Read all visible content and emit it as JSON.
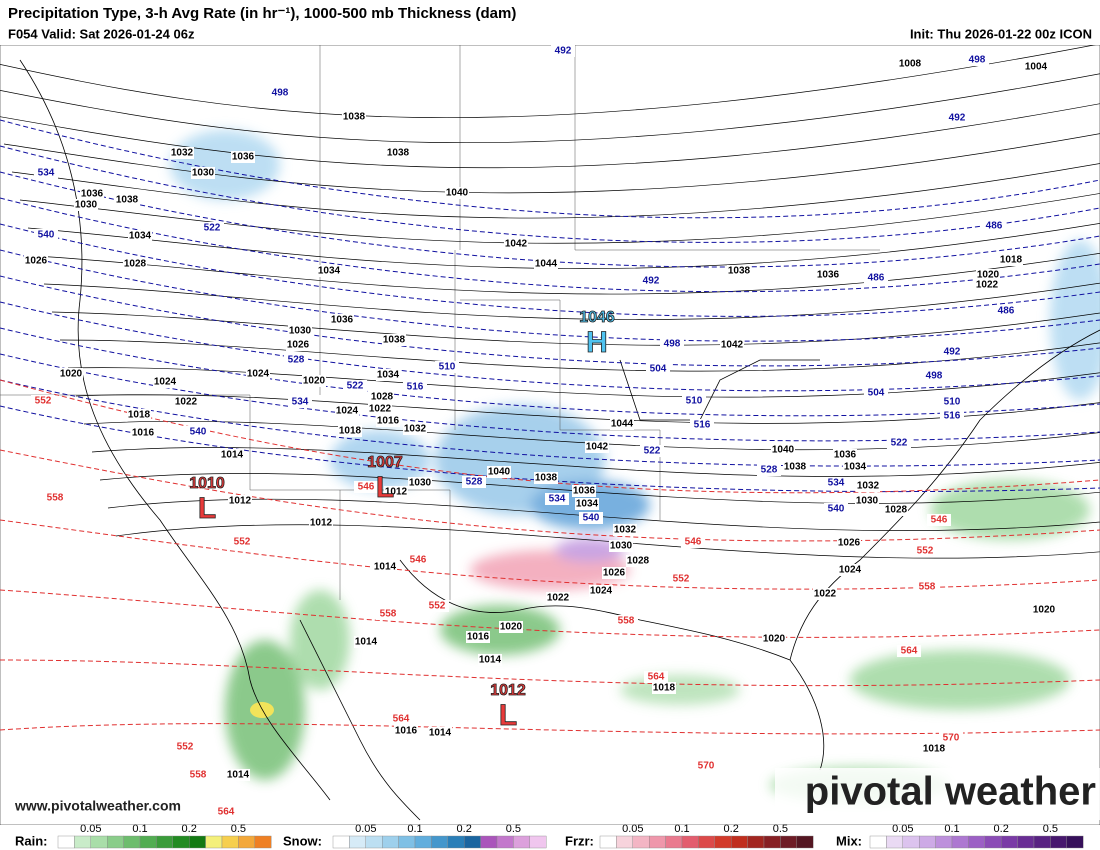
{
  "header": {
    "title": "Precipitation Type, 3-h Avg Rate (in hr⁻¹), 1000-500 mb Thickness (dam)",
    "valid": "F054 Valid: Sat 2026-01-24 06z",
    "init": "Init: Thu 2026-01-22 00z ICON"
  },
  "centers": [
    {
      "value": "1046",
      "letter": "H"
    },
    {
      "value": "1007",
      "letter": "L"
    },
    {
      "value": "1010",
      "letter": "L"
    },
    {
      "value": "1012",
      "letter": "L"
    }
  ],
  "isobar_labels": [
    "1008",
    "1004",
    "1038",
    "1032",
    "1036",
    "1038",
    "1030",
    "1040",
    "1036",
    "1038",
    "1030",
    "1034",
    "1042",
    "1044",
    "1026",
    "1028",
    "1034",
    "1038",
    "1036",
    "1018",
    "1020",
    "1022",
    "1036",
    "1030",
    "1038",
    "1026",
    "1042",
    "1024",
    "1020",
    "1034",
    "1020",
    "1024",
    "1028",
    "1022",
    "1024",
    "1022",
    "1018",
    "1016",
    "1032",
    "1016",
    "1018",
    "1044",
    "1014",
    "1042",
    "1040",
    "1036",
    "1034",
    "1038",
    "1040",
    "1038",
    "1030",
    "1012",
    "1032",
    "1036",
    "1012",
    "1034",
    "1030",
    "1028",
    "1032",
    "1012",
    "1030",
    "1026",
    "1028",
    "1014",
    "1026",
    "1024",
    "1022",
    "1024",
    "1022",
    "1020",
    "1020",
    "1016",
    "1014",
    "1020",
    "1014",
    "1018",
    "1016",
    "1014",
    "1018",
    "1014"
  ],
  "cold_thickness_labels": [
    "492",
    "498",
    "498",
    "492",
    "534",
    "522",
    "540",
    "486",
    "492",
    "486",
    "486",
    "528",
    "498",
    "504",
    "492",
    "498",
    "510",
    "522",
    "516",
    "534",
    "510",
    "504",
    "510",
    "516",
    "540",
    "516",
    "522",
    "522",
    "528",
    "528",
    "534",
    "534",
    "540",
    "540"
  ],
  "warm_thickness_labels": [
    "552",
    "558",
    "552",
    "546",
    "546",
    "546",
    "546",
    "552",
    "552",
    "552",
    "558",
    "558",
    "558",
    "564",
    "564",
    "564",
    "552",
    "558",
    "570",
    "570",
    "564"
  ],
  "footer": {
    "website": "www.pivotalweather.com",
    "logo": "pivotal weather"
  },
  "legend": [
    {
      "name": "Rain:",
      "ticks": [
        "0.05",
        "0.1",
        "0.2",
        "0.5"
      ],
      "colors": [
        "#ffffff",
        "#c9ecc9",
        "#a9dea9",
        "#8acd8a",
        "#6dbd6d",
        "#52ad52",
        "#3a9c3a",
        "#228b22",
        "#137a13",
        "#f4f07a",
        "#f6cf4e",
        "#f3a83a",
        "#ef8024"
      ]
    },
    {
      "name": "Snow:",
      "ticks": [
        "0.05",
        "0.1",
        "0.2",
        "0.5"
      ],
      "colors": [
        "#ffffff",
        "#d6ebf7",
        "#bcdff2",
        "#9ed0ec",
        "#7fc0e5",
        "#61aedd",
        "#4497cc",
        "#2a7fb8",
        "#1a65a0",
        "#aa55bb",
        "#c378cc",
        "#dca0dc",
        "#f0c6ee"
      ]
    },
    {
      "name": "Frzr:",
      "ticks": [
        "0.05",
        "0.1",
        "0.2",
        "0.5"
      ],
      "colors": [
        "#ffffff",
        "#f7d3dc",
        "#f3b5c4",
        "#ef97ab",
        "#ea7a8f",
        "#e35d6e",
        "#dc4a4a",
        "#d23a2a",
        "#c02e1e",
        "#a22620",
        "#872024",
        "#6e1c26",
        "#541622"
      ]
    },
    {
      "name": "Mix:",
      "ticks": [
        "0.05",
        "0.1",
        "0.2",
        "0.5"
      ],
      "colors": [
        "#ffffff",
        "#eadaf4",
        "#dcc3ee",
        "#cdaae6",
        "#bd90dc",
        "#ad78d1",
        "#9c60c5",
        "#8b4cb6",
        "#7a3ba6",
        "#692d94",
        "#582282",
        "#47186e",
        "#36105a"
      ]
    }
  ]
}
